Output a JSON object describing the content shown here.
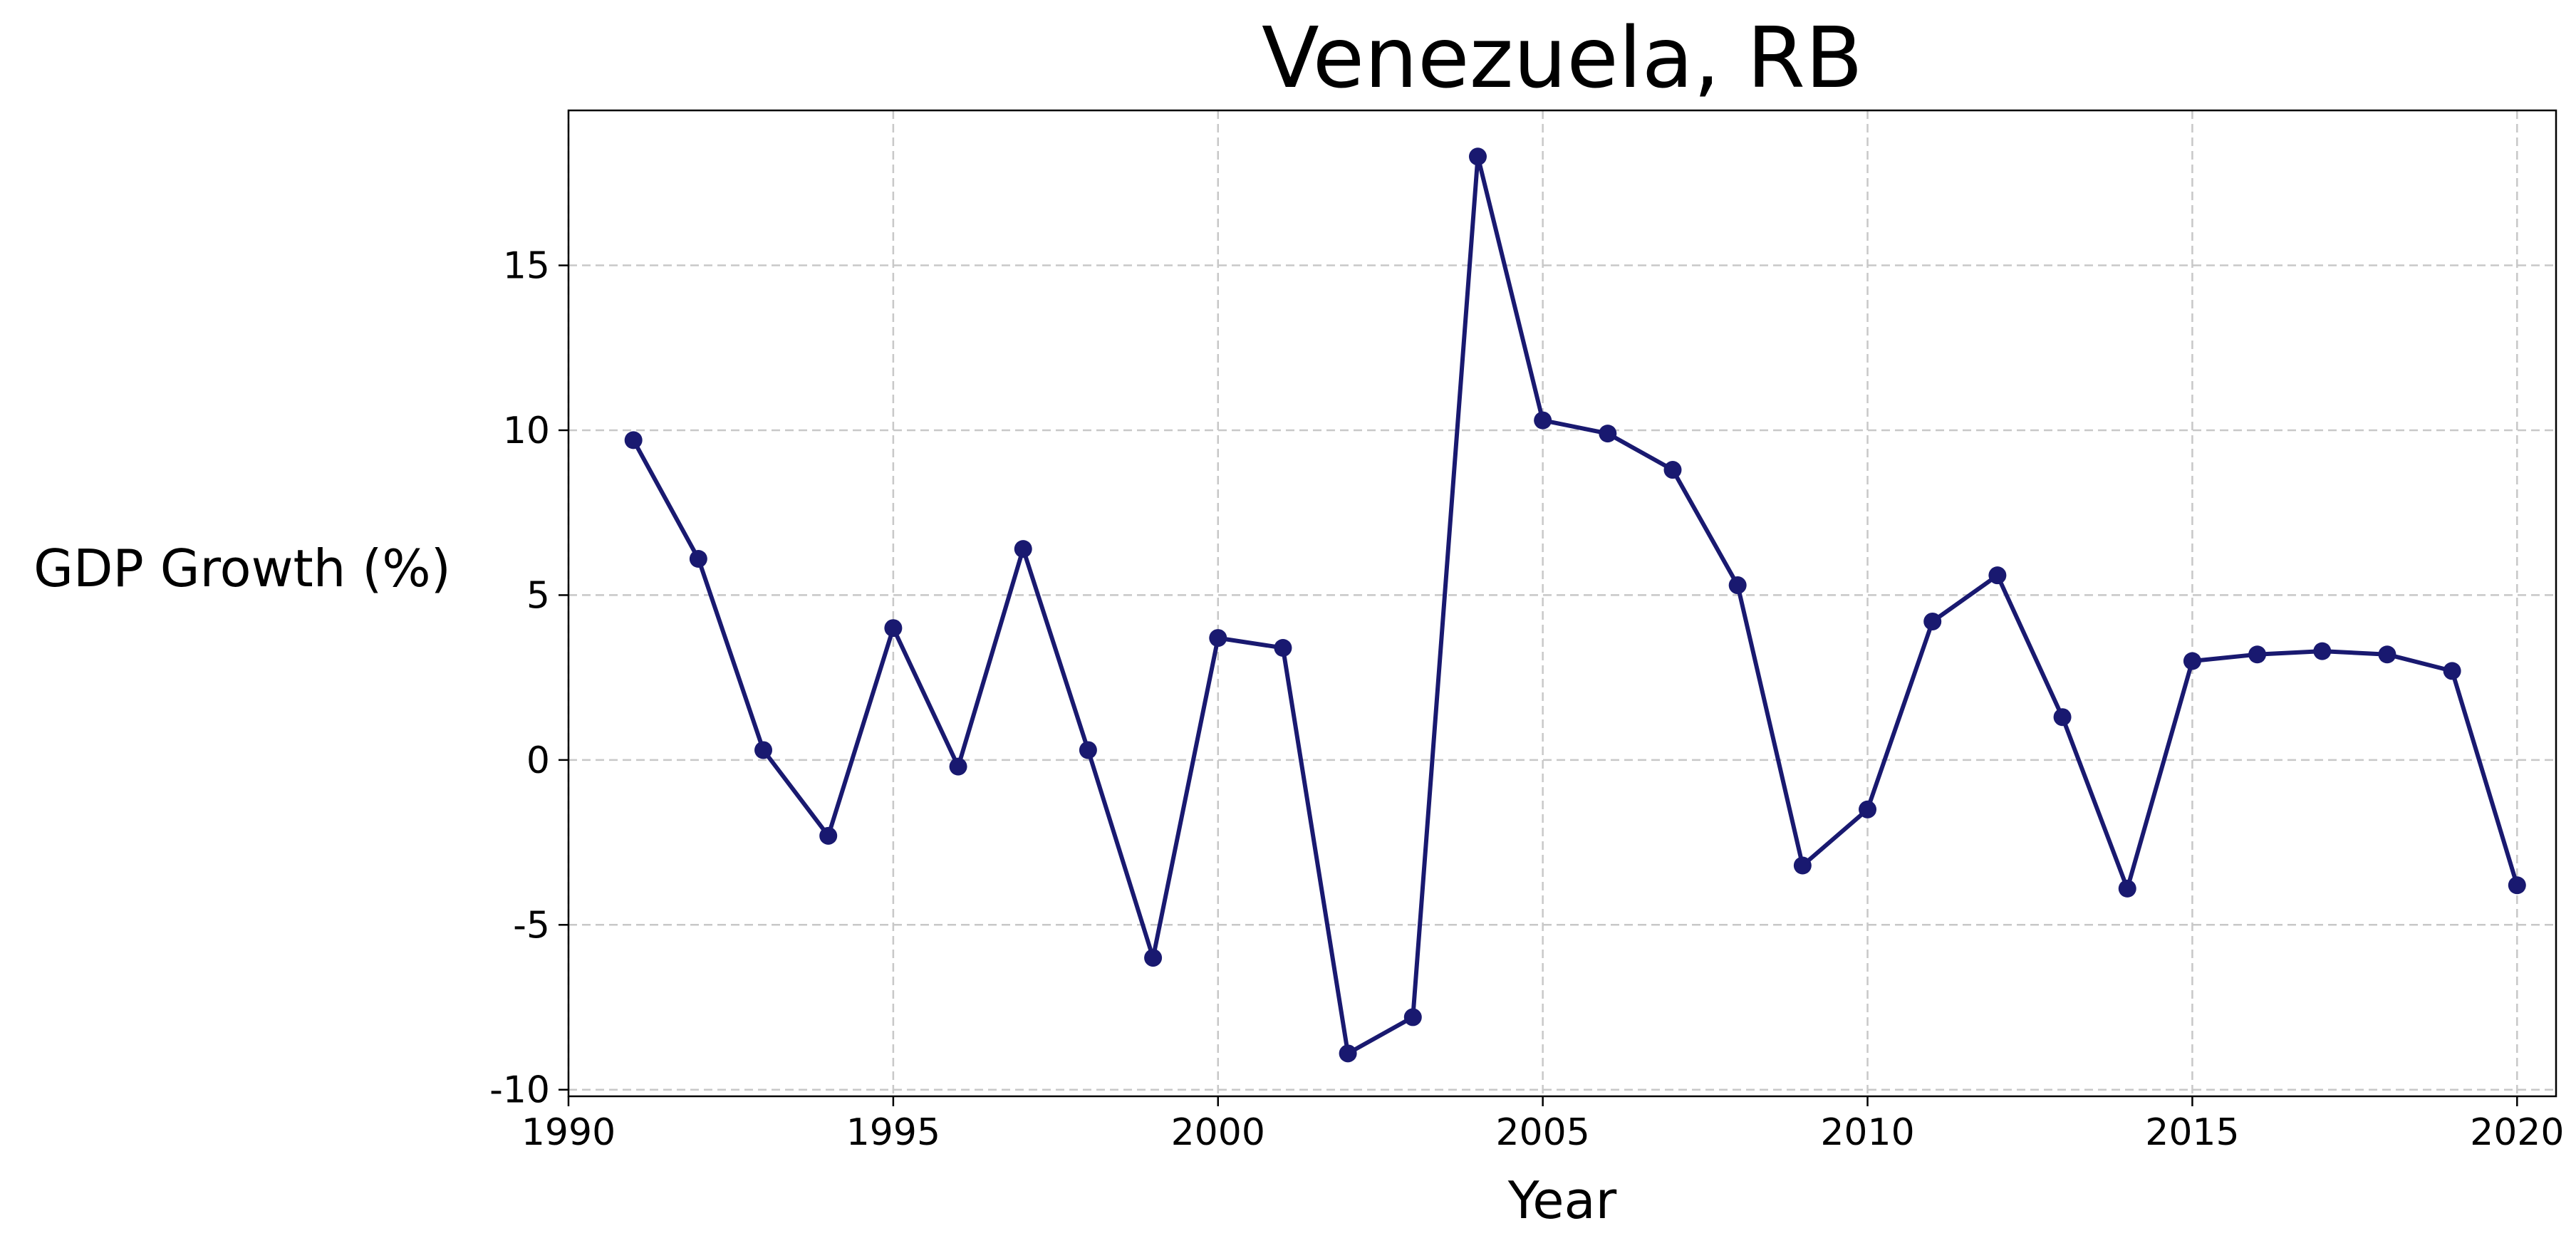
{
  "chart_data": {
    "type": "line",
    "title": "Venezuela, RB",
    "xlabel": "Year",
    "ylabel": "GDP Growth (%)",
    "xlim": [
      1990.0,
      2020.6
    ],
    "ylim": [
      -10.2,
      19.7
    ],
    "grid": true,
    "legend": "none",
    "x_ticks": [
      1990,
      1995,
      2000,
      2005,
      2010,
      2015,
      2020
    ],
    "x_tick_labels": [
      "1990",
      "1995",
      "2000",
      "2005",
      "2010",
      "2015",
      "2020"
    ],
    "y_ticks": [
      -10,
      -5,
      0,
      5,
      10,
      15
    ],
    "y_tick_labels": [
      "-10",
      "-5",
      "0",
      "5",
      "10",
      "15"
    ],
    "series": [
      {
        "color": "#191970",
        "marker": "circle",
        "x": [
          1991,
          1992,
          1993,
          1994,
          1995,
          1996,
          1997,
          1998,
          1999,
          2000,
          2001,
          2002,
          2003,
          2004,
          2005,
          2006,
          2007,
          2008,
          2009,
          2010,
          2011,
          2012,
          2013,
          2014,
          2015,
          2016,
          2017,
          2018,
          2019,
          2020
        ],
        "values": [
          9.7,
          6.1,
          0.3,
          -2.3,
          4.0,
          -0.2,
          6.4,
          0.3,
          -6.0,
          3.7,
          3.4,
          -8.9,
          -7.8,
          18.3,
          10.3,
          9.9,
          8.8,
          5.3,
          -3.2,
          -1.5,
          4.2,
          5.6,
          1.3,
          -3.9,
          3.0,
          3.2,
          3.3,
          3.2,
          2.7,
          -3.8
        ]
      }
    ]
  }
}
